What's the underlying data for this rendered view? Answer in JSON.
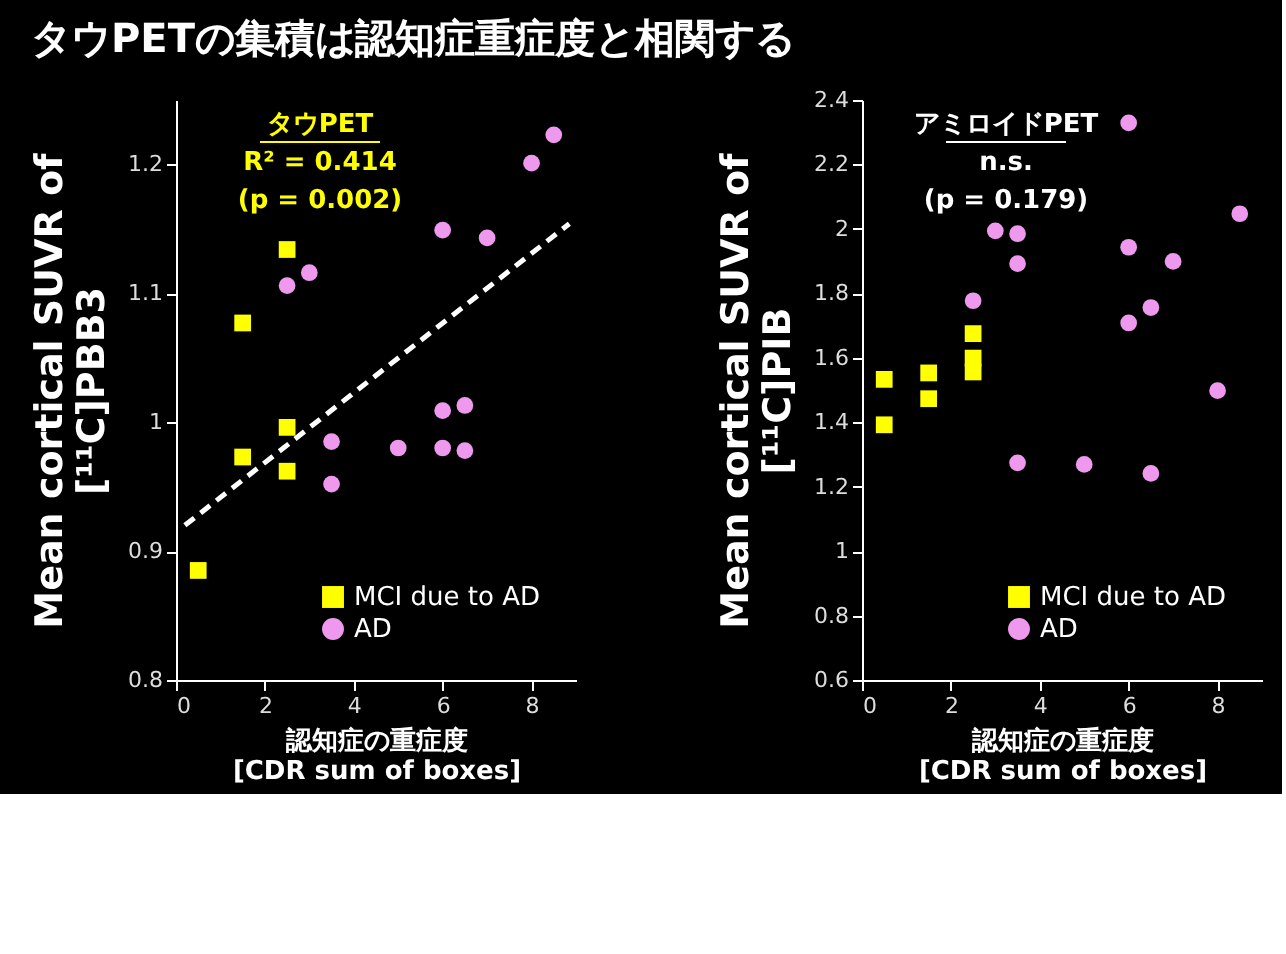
{
  "chart_data": [
    {
      "type": "scatter",
      "title": "タウPETの集積は認知症重症度と相関する",
      "xlabel": "認知症の重症度\n[CDR sum of boxes]",
      "ylabel": "Mean cortical SUVR of\n[¹¹C]PBB3",
      "annotations": [
        "タウPET",
        "R² = 0.414",
        "(p = 0.002)"
      ],
      "xlim": [
        0,
        9
      ],
      "xticks": [
        0,
        2,
        4,
        6,
        8
      ],
      "ylim": [
        0.8,
        1.25
      ],
      "yticks": [
        0.8,
        0.9,
        1,
        1.1,
        1.2
      ],
      "grid": false,
      "legend": "bottom right",
      "series": [
        {
          "name": "MCI due to AD",
          "color": "#ffff00",
          "marker": "square",
          "x": [
            0.5,
            1.5,
            1.5,
            2.5,
            2.5,
            2.5
          ],
          "values": [
            0.885,
            1.077,
            0.973,
            1.134,
            0.996,
            0.962
          ]
        },
        {
          "name": "AD",
          "color": "#ee99ee",
          "marker": "circle",
          "x": [
            2.5,
            3,
            3.5,
            3.5,
            5,
            6,
            6,
            6,
            6.5,
            6.5,
            7,
            8,
            8.5
          ],
          "values": [
            1.106,
            1.116,
            0.985,
            0.952,
            0.98,
            1.149,
            1.009,
            0.98,
            1.013,
            0.978,
            1.143,
            1.201,
            1.223
          ]
        },
        {
          "type": "line",
          "color": "#ffffff",
          "line_style": "dashed",
          "x": [
            0.2,
            8.85
          ],
          "values": [
            0.92,
            1.154
          ]
        }
      ]
    },
    {
      "type": "scatter",
      "xlabel": "認知症の重症度\n[CDR sum of boxes]",
      "ylabel": "Mean cortical SUVR of\n[¹¹C]PIB",
      "annotations": [
        "アミロイドPET",
        "n.s.",
        "(p = 0.179)"
      ],
      "xlim": [
        0,
        9
      ],
      "xticks": [
        0,
        2,
        4,
        6,
        8
      ],
      "ylim": [
        0.6,
        2.4
      ],
      "yticks": [
        0.6,
        0.8,
        1,
        1.2,
        1.4,
        1.6,
        1.8,
        2,
        2.2,
        2.4
      ],
      "grid": false,
      "legend": "bottom right",
      "series": [
        {
          "name": "MCI due to AD",
          "color": "#ffff00",
          "marker": "square",
          "x": [
            0.5,
            0.5,
            1.5,
            1.5,
            2.5,
            2.5,
            2.5
          ],
          "values": [
            1.533,
            1.392,
            1.553,
            1.473,
            1.675,
            1.599,
            1.556
          ]
        },
        {
          "name": "AD",
          "color": "#ee99ee",
          "marker": "circle",
          "x": [
            2.5,
            3,
            3.5,
            3.5,
            3.5,
            5,
            6,
            6,
            6,
            6.5,
            6.5,
            7,
            8,
            8.5
          ],
          "values": [
            1.777,
            1.994,
            1.985,
            1.892,
            1.274,
            1.269,
            2.329,
            1.943,
            1.708,
            1.756,
            1.241,
            1.899,
            1.498,
            2.047
          ]
        }
      ]
    }
  ]
}
